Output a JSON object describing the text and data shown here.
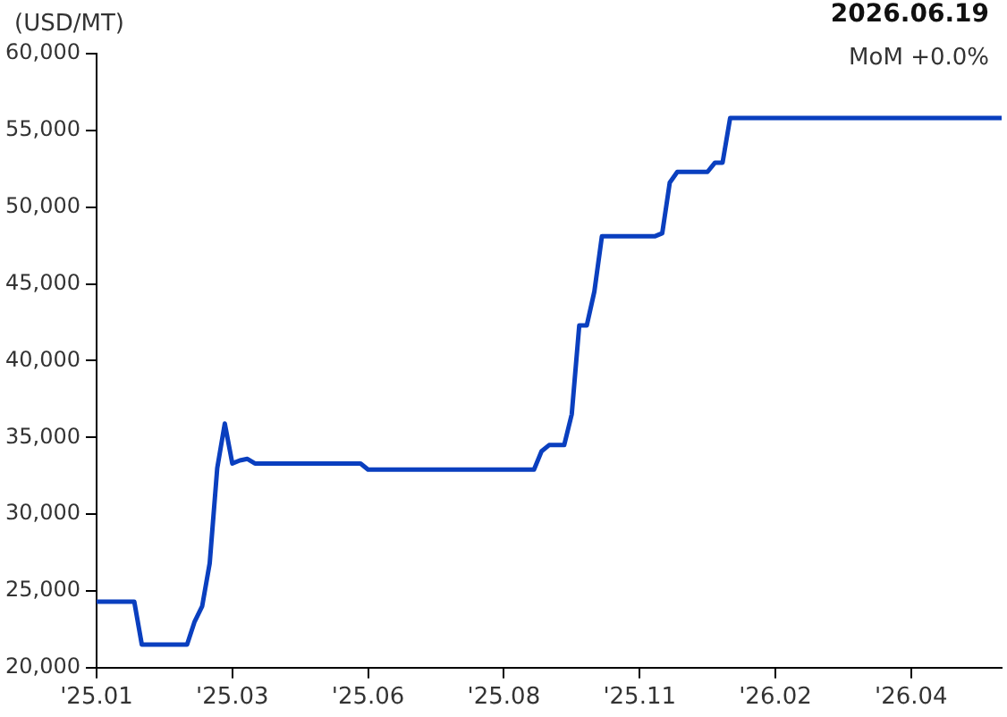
{
  "chart_data": {
    "type": "line",
    "title": "2026.06.19",
    "subtitle": "MoM +0.0%",
    "ylabel": "(USD/MT)",
    "categories": [
      "'25.01",
      null,
      null,
      null,
      null,
      null,
      null,
      null,
      null,
      null,
      null,
      null,
      null,
      null,
      null,
      null,
      null,
      null,
      "'25.03",
      null,
      null,
      null,
      null,
      null,
      null,
      null,
      null,
      null,
      null,
      null,
      null,
      null,
      null,
      null,
      null,
      null,
      "'25.06",
      null,
      null,
      null,
      null,
      null,
      null,
      null,
      null,
      null,
      null,
      null,
      null,
      null,
      null,
      null,
      null,
      null,
      "'25.08",
      null,
      null,
      null,
      null,
      null,
      null,
      null,
      null,
      null,
      null,
      null,
      null,
      null,
      null,
      null,
      null,
      null,
      "'25.11",
      null,
      null,
      null,
      null,
      null,
      null,
      null,
      null,
      null,
      null,
      null,
      null,
      null,
      null,
      null,
      null,
      null,
      "'26.02",
      null,
      null,
      null,
      null,
      null,
      null,
      null,
      null,
      null,
      null,
      null,
      null,
      null,
      null,
      null,
      null,
      null,
      "'26.04",
      null,
      null,
      null,
      null,
      null,
      null,
      null,
      null,
      null,
      null,
      null,
      null
    ],
    "series": [
      {
        "color": "#0a3fbf",
        "values": [
          24300,
          24300,
          24300,
          24300,
          24300,
          24300,
          21500,
          21500,
          21500,
          21500,
          21500,
          21500,
          21500,
          23000,
          24000,
          26800,
          33000,
          35900,
          33300,
          33500,
          33600,
          33300,
          33300,
          33300,
          33300,
          33300,
          33300,
          33300,
          33300,
          33300,
          33300,
          33300,
          33300,
          33300,
          33300,
          33300,
          32900,
          32900,
          32900,
          32900,
          32900,
          32900,
          32900,
          32900,
          32900,
          32900,
          32900,
          32900,
          32900,
          32900,
          32900,
          32900,
          32900,
          32900,
          32900,
          32900,
          32900,
          32900,
          32900,
          34100,
          34500,
          34500,
          34500,
          36500,
          42300,
          42300,
          44500,
          48100,
          48100,
          48100,
          48100,
          48100,
          48100,
          48100,
          48100,
          48300,
          51600,
          52300,
          52300,
          52300,
          52300,
          52300,
          52900,
          52900,
          55800,
          55800,
          55800,
          55800,
          55800,
          55800,
          55800,
          55800,
          55800,
          55800,
          55800,
          55800,
          55800,
          55800,
          55800,
          55800,
          55800,
          55800,
          55800,
          55800,
          55800,
          55800,
          55800,
          55800,
          55800,
          55800,
          55800,
          55800,
          55800,
          55800,
          55800,
          55800,
          55800,
          55800,
          55800,
          55800,
          55800
        ]
      }
    ],
    "ylim": [
      20000,
      60000
    ],
    "yticks": [
      {
        "value": 20000,
        "label": "20,000"
      },
      {
        "value": 25000,
        "label": "25,000"
      },
      {
        "value": 30000,
        "label": "30,000"
      },
      {
        "value": 35000,
        "label": "35,000"
      },
      {
        "value": 40000,
        "label": "40,000"
      },
      {
        "value": 45000,
        "label": "45,000"
      },
      {
        "value": 50000,
        "label": "50,000"
      },
      {
        "value": 55000,
        "label": "55,000"
      },
      {
        "value": 60000,
        "label": "60,000"
      }
    ],
    "grid": false,
    "legend": false,
    "marker": "none",
    "line_style": "solid"
  }
}
